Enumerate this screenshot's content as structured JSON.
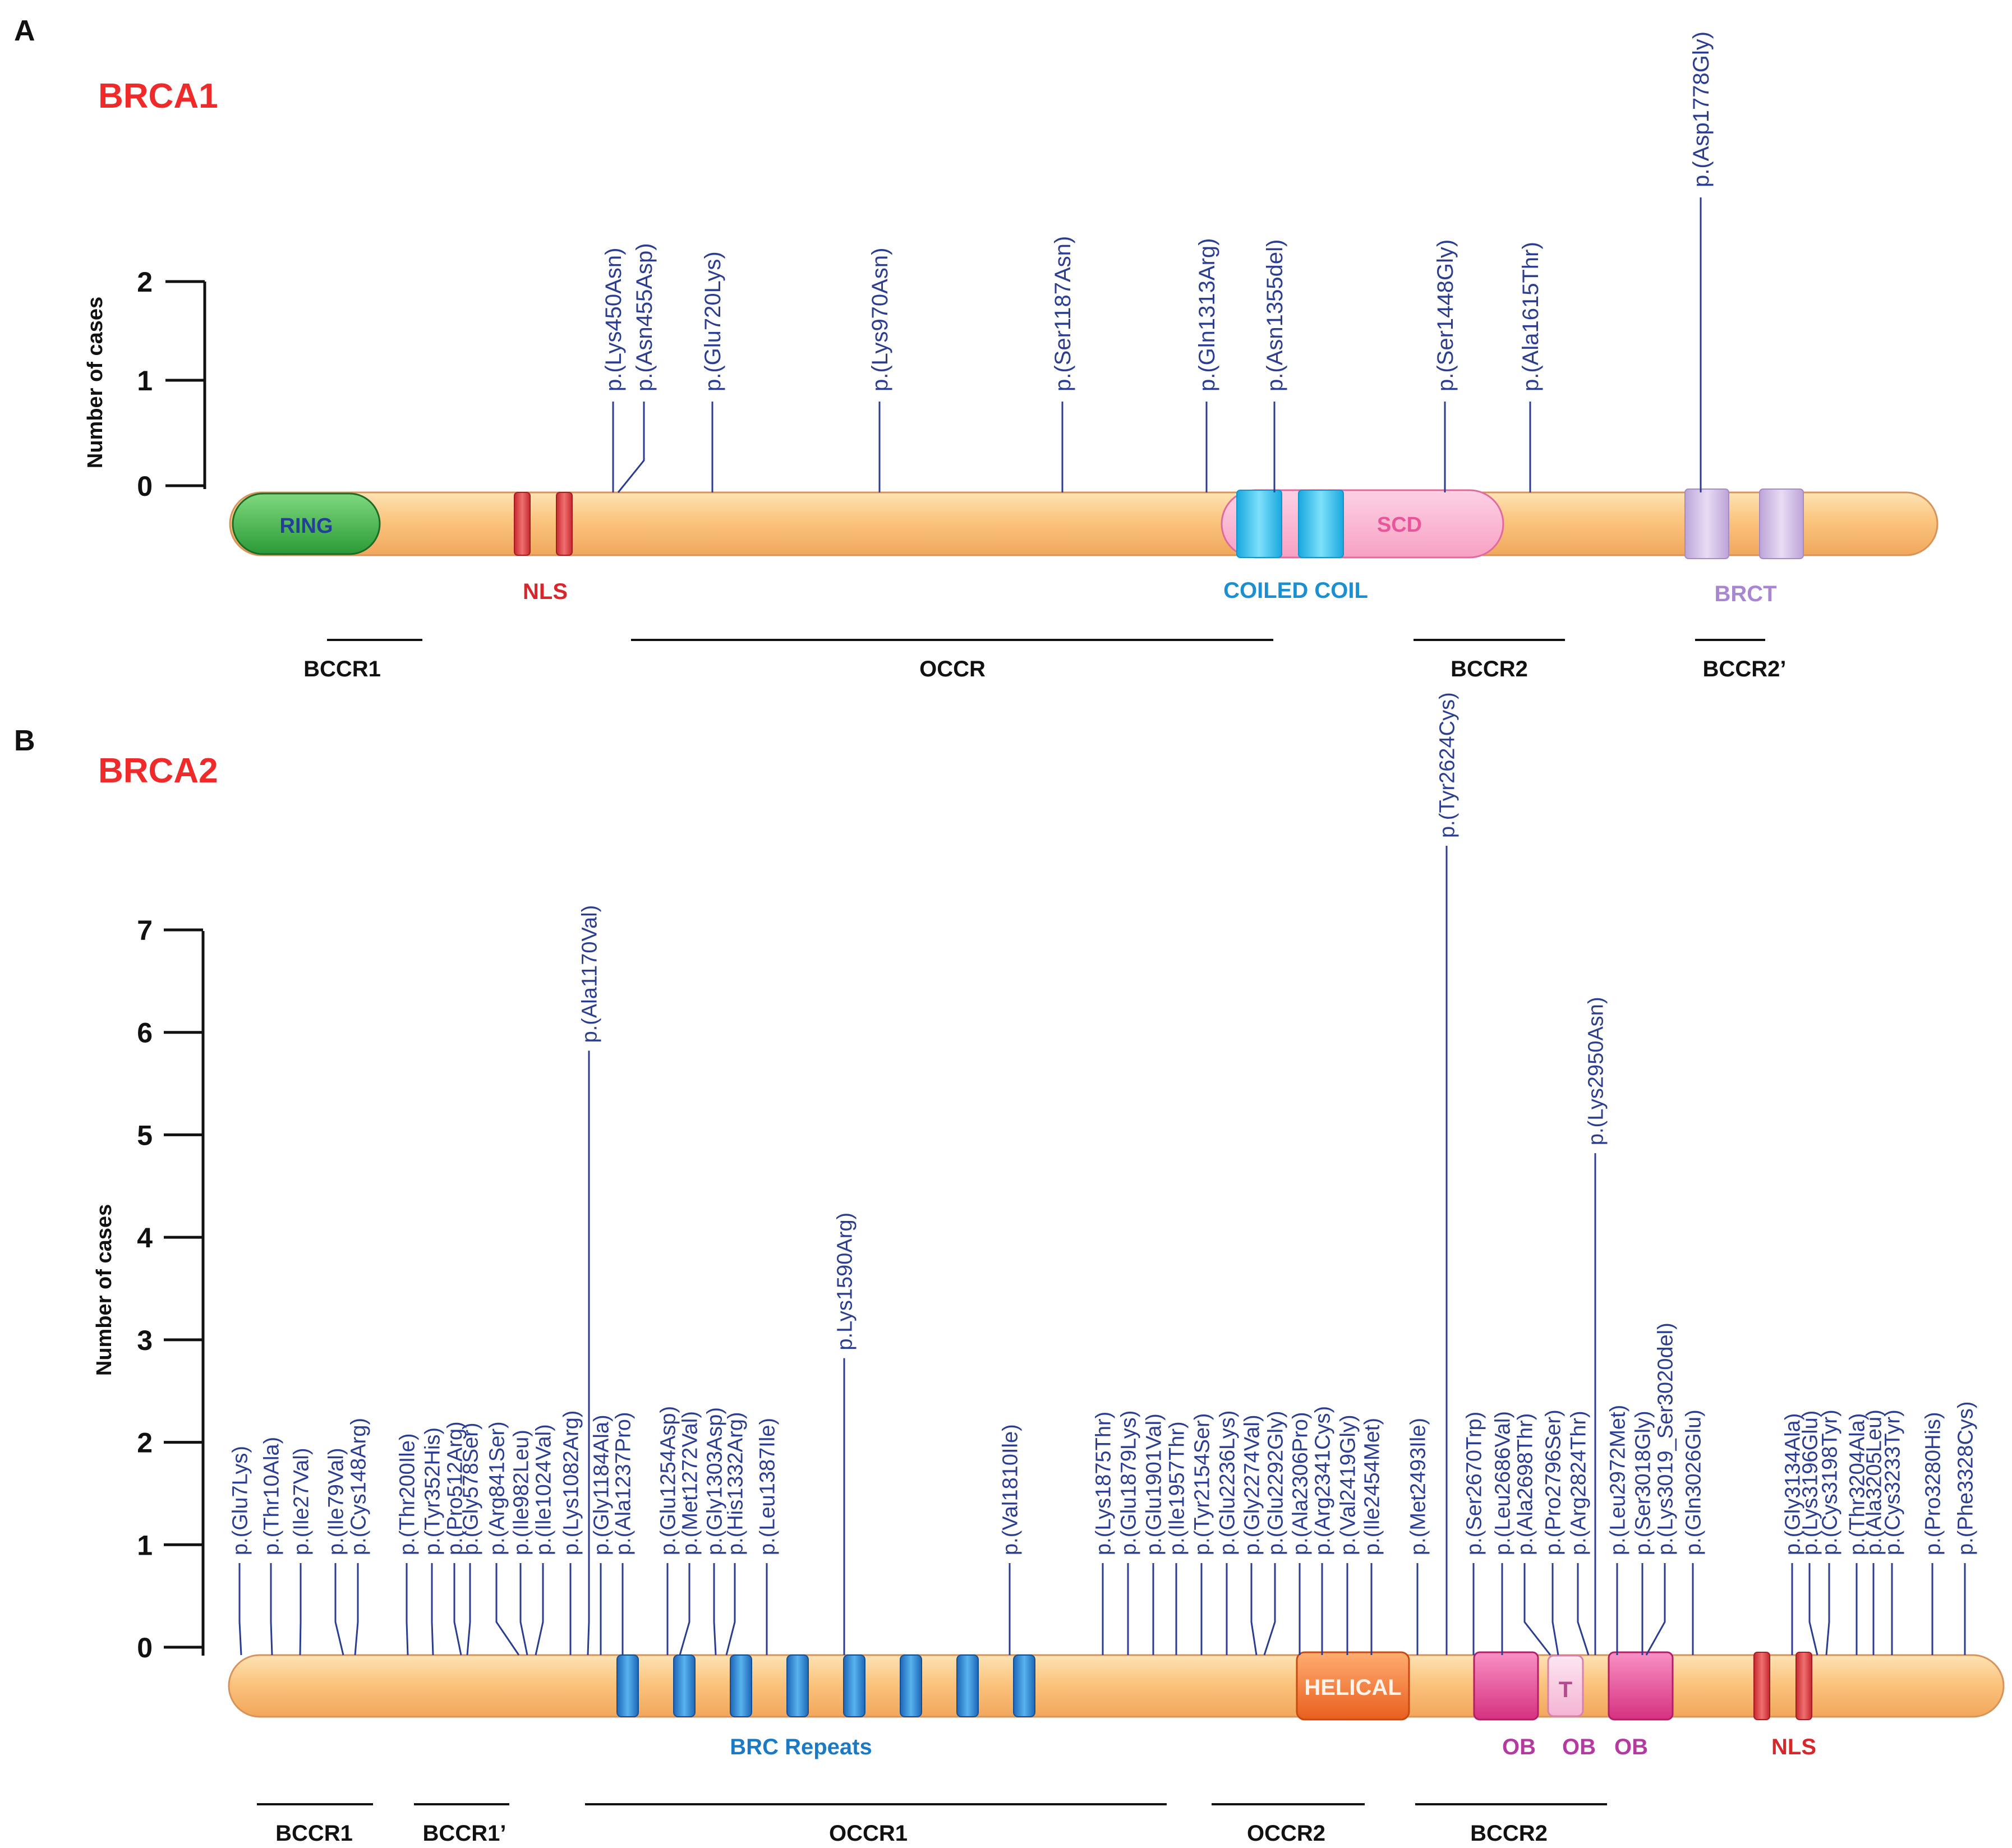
{
  "panels": {
    "a": {
      "letter": "A",
      "gene": "BRCA1",
      "y_label": "Number  of  cases",
      "y_ticks": [
        "0",
        "1",
        "2"
      ],
      "domains": {
        "ring": "RING",
        "nls": "NLS",
        "coiled_coil": "COILED COIL",
        "scd": "SCD",
        "brct": "BRCT"
      },
      "regions": [
        "BCCR1",
        "OCCR",
        "BCCR2",
        "BCCR2’"
      ],
      "variants": [
        {
          "label": "p.(Lys450Asn)",
          "cases": 0
        },
        {
          "label": "p.(Asn455Asp)",
          "cases": 0
        },
        {
          "label": "p.(Glu720Lys)",
          "cases": 0
        },
        {
          "label": "p.(Lys970Asn)",
          "cases": 0
        },
        {
          "label": "p.(Ser1187Asn)",
          "cases": 0
        },
        {
          "label": "p.(Gln1313Arg)",
          "cases": 0
        },
        {
          "label": "p.(Asn1355del)",
          "cases": 0
        },
        {
          "label": "p.(Ser1448Gly)",
          "cases": 0
        },
        {
          "label": "p.(Ala1615Thr)",
          "cases": 0
        },
        {
          "label": "p.(Asp1778Gly)",
          "cases": 2
        }
      ]
    },
    "b": {
      "letter": "B",
      "gene": "BRCA2",
      "y_label": "Number  of  cases",
      "y_ticks": [
        "0",
        "1",
        "2",
        "3",
        "4",
        "5",
        "6",
        "7"
      ],
      "domains": {
        "brc": "BRC Repeats",
        "helical": "HELICAL",
        "t": "T",
        "ob1": "OB",
        "ob2": "OB",
        "ob3": "OB",
        "nls": "NLS"
      },
      "regions": [
        "BCCR1",
        "BCCR1’",
        "OCCR1",
        "OCCR2",
        "BCCR2"
      ],
      "variants": [
        {
          "label": "p.(Glu7Lys)",
          "cases": 0
        },
        {
          "label": "p.(Thr10Ala)",
          "cases": 0
        },
        {
          "label": "p.(Ile27Val)",
          "cases": 0
        },
        {
          "label": "p.(Ile79Val)",
          "cases": 0
        },
        {
          "label": "p.(Cys148Arg)",
          "cases": 0
        },
        {
          "label": "p.(Thr200Ile)",
          "cases": 0
        },
        {
          "label": "p.(Tyr352His)",
          "cases": 0
        },
        {
          "label": "p.(Pro512Arg)",
          "cases": 0
        },
        {
          "label": "p.(Gly578Ser)",
          "cases": 0
        },
        {
          "label": "p.(Arg841Ser)",
          "cases": 0
        },
        {
          "label": "p.(Ile982Leu)",
          "cases": 0
        },
        {
          "label": "p.(Ile1024Val)",
          "cases": 0
        },
        {
          "label": "p.(Lys1082Arg)",
          "cases": 0
        },
        {
          "label": "p.(Ala1170Val)",
          "cases": 5
        },
        {
          "label": "p.(Gly1184Ala)",
          "cases": 0
        },
        {
          "label": "p.(Ala1237Pro)",
          "cases": 0
        },
        {
          "label": "p.(Glu1254Asp)",
          "cases": 0
        },
        {
          "label": "p.(Met1272Val)",
          "cases": 0
        },
        {
          "label": "p.(Gly1303Asp)",
          "cases": 0
        },
        {
          "label": "p.(His1332Arg)",
          "cases": 0
        },
        {
          "label": "p.(Leu1387Ile)",
          "cases": 0
        },
        {
          "label": "p.Lys1590Arg)",
          "cases": 2
        },
        {
          "label": "p.(Val1810Ile)",
          "cases": 0
        },
        {
          "label": "p.(Lys1875Thr)",
          "cases": 0
        },
        {
          "label": "p.(Glu1879Lys)",
          "cases": 0
        },
        {
          "label": "p.(Glu1901Val)",
          "cases": 0
        },
        {
          "label": "p.(Ile1957Thr)",
          "cases": 0
        },
        {
          "label": "p.(Tyr2154Ser)",
          "cases": 0
        },
        {
          "label": "p.(Glu2236Lys)",
          "cases": 0
        },
        {
          "label": "p.(Gly2274Val)",
          "cases": 0
        },
        {
          "label": "p.(Glu2292Gly)",
          "cases": 0
        },
        {
          "label": "p.(Ala2306Pro)",
          "cases": 0
        },
        {
          "label": "p.(Arg2341Cys)",
          "cases": 0
        },
        {
          "label": "p.(Val2419Gly)",
          "cases": 0
        },
        {
          "label": "p.(Ile2454Met)",
          "cases": 0
        },
        {
          "label": "p.(Met2493Ile)",
          "cases": 0
        },
        {
          "label": "p.(Tyr2624Cys)",
          "cases": 7
        },
        {
          "label": "p.(Ser2670Trp)",
          "cases": 0
        },
        {
          "label": "p.(Leu2686Val)",
          "cases": 0
        },
        {
          "label": "p.(Ala2698Thr)",
          "cases": 0
        },
        {
          "label": "p.(Pro2796Ser)",
          "cases": 0
        },
        {
          "label": "p.(Arg2824Thr)",
          "cases": 0
        },
        {
          "label": "p.(Lys2950Asn)",
          "cases": 4
        },
        {
          "label": "p.(Leu2972Met)",
          "cases": 0
        },
        {
          "label": "p.(Ser3018Gly)",
          "cases": 0
        },
        {
          "label": "p.(Lys3019_Ser3020del)",
          "cases": 0
        },
        {
          "label": "p.(Gln3026Glu)",
          "cases": 0
        },
        {
          "label": "p.(Gly3134Ala)",
          "cases": 0
        },
        {
          "label": "p.(Lys3196Glu)",
          "cases": 0
        },
        {
          "label": "p.(Cys3198Tyr)",
          "cases": 0
        },
        {
          "label": "p.(Thr3204Ala)",
          "cases": 0
        },
        {
          "label": "p.(Ala3205Leu)",
          "cases": 0
        },
        {
          "label": "p.(Cys3233Tyr)",
          "cases": 0
        },
        {
          "label": "p.(Pro3280His)",
          "cases": 0
        },
        {
          "label": "p.(Phe3328Cys)",
          "cases": 0
        }
      ]
    }
  }
}
